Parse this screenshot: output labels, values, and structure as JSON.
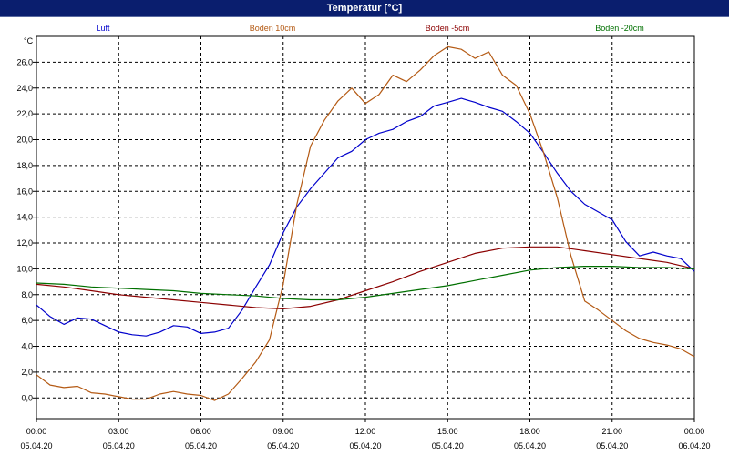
{
  "window": {
    "title": "Temperatur [°C]"
  },
  "chart_data": {
    "type": "line",
    "title": "Temperatur [°C]",
    "ylabel": "°C",
    "xlabel": "",
    "ylim": [
      -1.6,
      28.0
    ],
    "xlim": [
      0,
      24
    ],
    "grid": true,
    "legend_position": "top",
    "y_ticks": [
      "0,0",
      "2,0",
      "4,0",
      "6,0",
      "8,0",
      "10,0",
      "12,0",
      "14,0",
      "16,0",
      "18,0",
      "20,0",
      "22,0",
      "24,0",
      "26,0"
    ],
    "y_tick_values": [
      0,
      2,
      4,
      6,
      8,
      10,
      12,
      14,
      16,
      18,
      20,
      22,
      24,
      26
    ],
    "x_ticks": [
      {
        "time": "00:00",
        "date": "05.04.20"
      },
      {
        "time": "03:00",
        "date": "05.04.20"
      },
      {
        "time": "06:00",
        "date": "05.04.20"
      },
      {
        "time": "09:00",
        "date": "05.04.20"
      },
      {
        "time": "12:00",
        "date": "05.04.20"
      },
      {
        "time": "15:00",
        "date": "05.04.20"
      },
      {
        "time": "18:00",
        "date": "05.04.20"
      },
      {
        "time": "21:00",
        "date": "05.04.20"
      },
      {
        "time": "00:00",
        "date": "06.04.20"
      }
    ],
    "x_tick_hours": [
      0,
      3,
      6,
      9,
      12,
      15,
      18,
      21,
      24
    ],
    "series": [
      {
        "name": "Luft",
        "color": "#0000cc",
        "x": [
          0,
          0.5,
          1,
          1.5,
          2,
          2.5,
          3,
          3.5,
          4,
          4.5,
          5,
          5.5,
          6,
          6.5,
          7,
          7.5,
          8,
          8.5,
          9,
          9.5,
          10,
          10.5,
          11,
          11.5,
          12,
          12.5,
          13,
          13.5,
          14,
          14.5,
          15,
          15.5,
          16,
          16.5,
          17,
          17.5,
          18,
          18.5,
          19,
          19.5,
          20,
          20.5,
          21,
          21.5,
          22,
          22.5,
          23,
          23.5,
          24
        ],
        "y": [
          7.2,
          6.3,
          5.7,
          6.2,
          6.1,
          5.6,
          5.1,
          4.9,
          4.8,
          5.1,
          5.6,
          5.5,
          5.0,
          5.1,
          5.4,
          6.8,
          8.6,
          10.3,
          12.8,
          14.8,
          16.2,
          17.4,
          18.6,
          19.1,
          20.0,
          20.5,
          20.8,
          21.4,
          21.8,
          22.6,
          22.9,
          23.2,
          22.9,
          22.5,
          22.2,
          21.4,
          20.5,
          19.0,
          17.4,
          16.0,
          15.0,
          14.4,
          13.8,
          12.1,
          11.0,
          11.3,
          11.0,
          10.8,
          9.8
        ]
      },
      {
        "name": "Boden 10cm",
        "color": "#b45a14",
        "x": [
          0,
          0.5,
          1,
          1.5,
          2,
          2.5,
          3,
          3.5,
          4,
          4.5,
          5,
          5.5,
          6,
          6.5,
          7,
          7.5,
          8,
          8.5,
          9,
          9.5,
          10,
          10.5,
          11,
          11.5,
          12,
          12.5,
          13,
          13.5,
          14,
          14.5,
          15,
          15.5,
          16,
          16.5,
          17,
          17.5,
          18,
          18.5,
          19,
          19.5,
          20,
          20.5,
          21,
          21.5,
          22,
          22.5,
          23,
          23.5,
          24
        ],
        "y": [
          1.8,
          1.0,
          0.8,
          0.9,
          0.4,
          0.3,
          0.1,
          -0.1,
          -0.1,
          0.3,
          0.5,
          0.3,
          0.2,
          -0.2,
          0.3,
          1.5,
          2.8,
          4.5,
          8.8,
          15.0,
          19.5,
          21.5,
          23.0,
          24.0,
          22.8,
          23.5,
          25.0,
          24.5,
          25.4,
          26.5,
          27.2,
          27.0,
          26.3,
          26.8,
          25.0,
          24.2,
          22.0,
          19.0,
          15.5,
          11.0,
          7.5,
          6.8,
          6.0,
          5.2,
          4.6,
          4.3,
          4.1,
          3.8,
          3.2
        ]
      },
      {
        "name": "Boden -5cm",
        "color": "#8b0000",
        "x": [
          0,
          1,
          2,
          3,
          4,
          5,
          6,
          7,
          8,
          9,
          10,
          11,
          12,
          13,
          14,
          15,
          16,
          17,
          18,
          19,
          20,
          21,
          22,
          23,
          24
        ],
        "y": [
          8.8,
          8.6,
          8.3,
          8.0,
          7.8,
          7.6,
          7.4,
          7.2,
          7.0,
          6.9,
          7.1,
          7.6,
          8.3,
          9.0,
          9.8,
          10.5,
          11.2,
          11.6,
          11.7,
          11.7,
          11.4,
          11.1,
          10.8,
          10.5,
          10.0
        ]
      },
      {
        "name": "Boden -20cm",
        "color": "#007000",
        "x": [
          0,
          1,
          2,
          3,
          4,
          5,
          6,
          7,
          8,
          9,
          10,
          11,
          12,
          13,
          14,
          15,
          16,
          17,
          18,
          19,
          20,
          21,
          22,
          23,
          24
        ],
        "y": [
          8.9,
          8.8,
          8.6,
          8.5,
          8.4,
          8.3,
          8.1,
          8.0,
          7.9,
          7.7,
          7.6,
          7.6,
          7.8,
          8.1,
          8.4,
          8.7,
          9.1,
          9.5,
          9.9,
          10.1,
          10.2,
          10.2,
          10.1,
          10.1,
          10.0
        ]
      }
    ]
  }
}
